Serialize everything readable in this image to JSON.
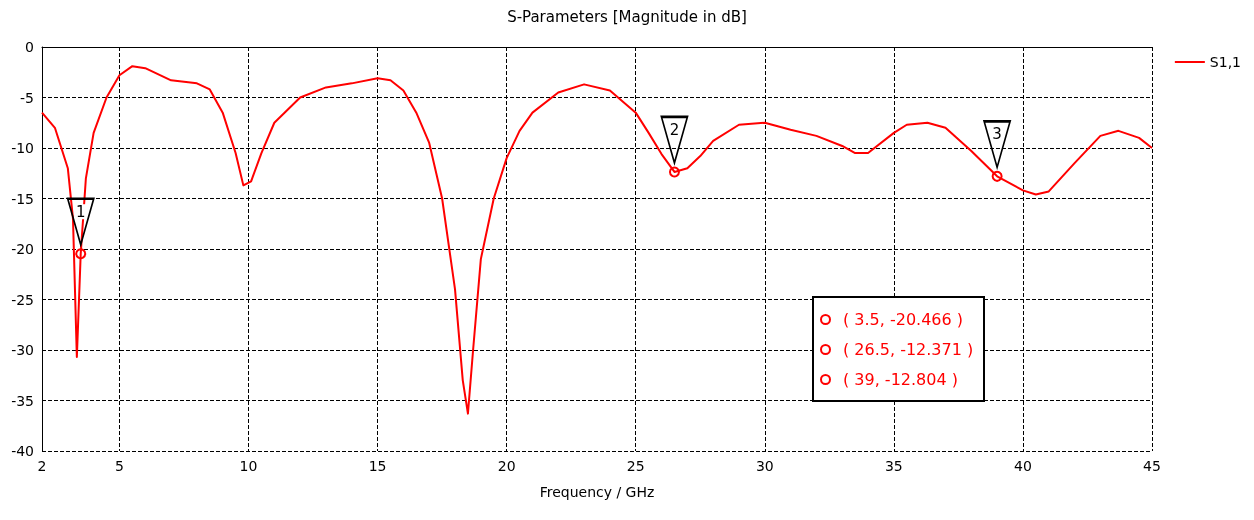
{
  "chart_data": {
    "type": "line",
    "title": "S-Parameters [Magnitude in dB]",
    "xlabel": "Frequency / GHz",
    "x": [
      2,
      2.5,
      3.0,
      3.2,
      3.35,
      3.5,
      3.7,
      4.0,
      4.5,
      5.0,
      5.5,
      6,
      7,
      8,
      8.5,
      9,
      9.5,
      9.8,
      10.1,
      10.5,
      11,
      12,
      13,
      14,
      15,
      15.5,
      16,
      16.5,
      17,
      17.5,
      18,
      18.3,
      18.5,
      18.7,
      19,
      19.5,
      20,
      20.5,
      21,
      22,
      23,
      24,
      25,
      25.5,
      26,
      26.5,
      27,
      27.5,
      28,
      29,
      30,
      31,
      32,
      33,
      33.5,
      34,
      35,
      35.5,
      36.3,
      37,
      38,
      39,
      40,
      40.5,
      41,
      42,
      43,
      43.7,
      44.5,
      45
    ],
    "series": [
      {
        "name": "S1,1",
        "color": "#ff0000",
        "values": [
          -6.5,
          -8,
          -12,
          -17,
          -30.7,
          -20.466,
          -13,
          -8.5,
          -5,
          -2.8,
          -1.9,
          -2.1,
          -3.3,
          -3.6,
          -4.2,
          -6.5,
          -10.5,
          -13.7,
          -13.3,
          -10.5,
          -7.5,
          -5,
          -4,
          -3.6,
          -3.1,
          -3.3,
          -4.3,
          -6.5,
          -9.5,
          -15,
          -24,
          -33,
          -36.3,
          -30,
          -21,
          -15,
          -11,
          -8.3,
          -6.5,
          -4.5,
          -3.7,
          -4.3,
          -6.5,
          -8.5,
          -10.6,
          -12.371,
          -12,
          -10.8,
          -9.3,
          -7.7,
          -7.5,
          -8.2,
          -8.8,
          -9.8,
          -10.5,
          -10.5,
          -8.5,
          -7.7,
          -7.5,
          -8,
          -10.3,
          -12.804,
          -14.2,
          -14.6,
          -14.3,
          -11.5,
          -8.8,
          -8.3,
          -9,
          -10
        ]
      }
    ],
    "xlim": [
      2,
      45
    ],
    "xticks": [
      2,
      5,
      10,
      15,
      20,
      25,
      30,
      35,
      40,
      45
    ],
    "ylim": [
      -40,
      0
    ],
    "yticks": [
      -40,
      -35,
      -30,
      -25,
      -20,
      -15,
      -10,
      -5,
      0
    ],
    "annotations": [
      {
        "text": "1",
        "x": 3.5,
        "y": -20.466
      },
      {
        "text": "2",
        "x": 26.5,
        "y": -12.371
      },
      {
        "text": "3",
        "x": 39,
        "y": -12.804
      },
      "( 3.5, -20.466 )",
      "( 26.5, -12.371 )",
      "( 39, -12.804 )"
    ],
    "grid": true,
    "legend": "top right",
    "marker": "none",
    "line_style": "solid"
  }
}
